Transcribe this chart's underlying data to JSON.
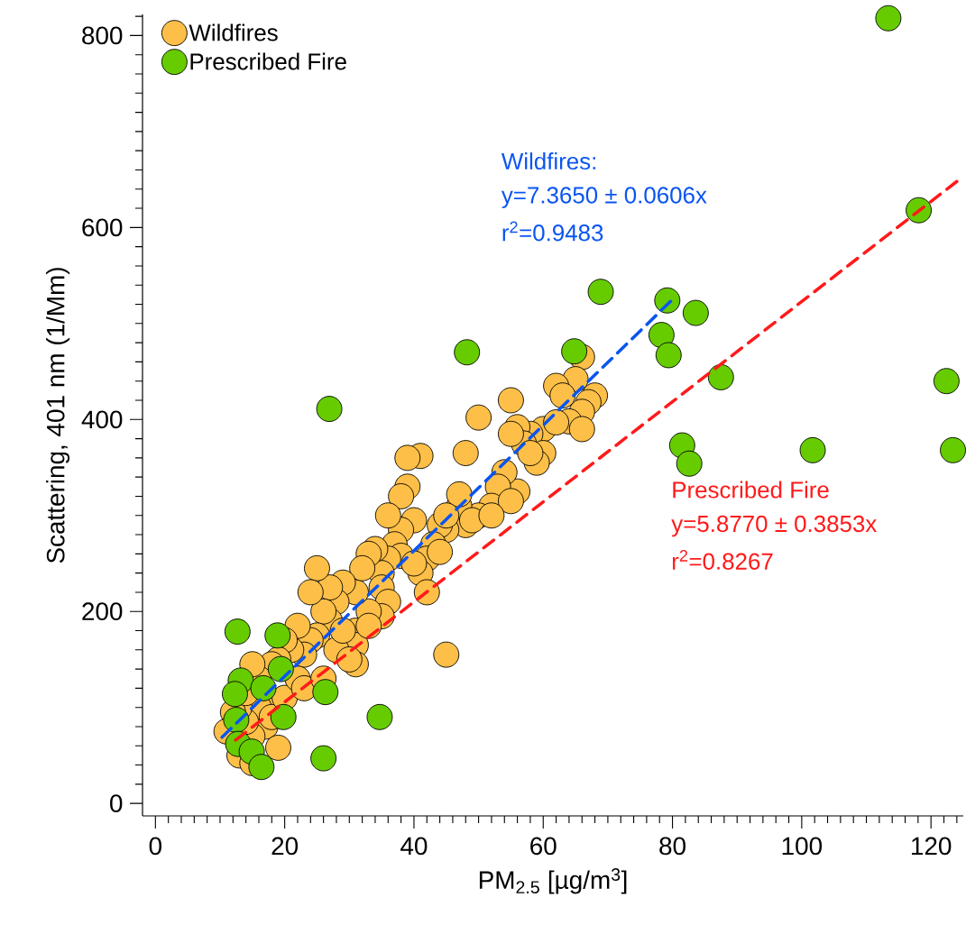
{
  "chart_data": {
    "type": "scatter",
    "xlabel": "PM$_{2.5}$ [µg/m$^{3}$]",
    "ylabel": "Scattering, 401 nm (1/Mm)",
    "xlim": [
      -2,
      125
    ],
    "ylim": [
      -13,
      822
    ],
    "xticks": [
      0,
      {
        "value": 2,
        "label": null
      },
      {
        "value": 4,
        "label": null
      },
      {
        "value": 6,
        "label": null
      },
      {
        "value": 8,
        "label": null
      },
      {
        "value": 10,
        "label": null
      },
      {
        "value": 12,
        "label": null
      },
      {
        "value": 14,
        "label": null
      },
      {
        "value": 16,
        "label": null
      },
      {
        "value": 18,
        "label": null
      },
      20,
      {
        "value": 22,
        "label": null
      },
      {
        "value": 24,
        "label": null
      },
      {
        "value": 26,
        "label": null
      },
      {
        "value": 28,
        "label": null
      },
      {
        "value": 30,
        "label": null
      },
      {
        "value": 32,
        "label": null
      },
      {
        "value": 34,
        "label": null
      },
      {
        "value": 36,
        "label": null
      },
      {
        "value": 38,
        "label": null
      },
      40,
      {
        "value": 42,
        "label": null
      },
      {
        "value": 44,
        "label": null
      },
      {
        "value": 46,
        "label": null
      },
      {
        "value": 48,
        "label": null
      },
      {
        "value": 50,
        "label": null
      },
      {
        "value": 52,
        "label": null
      },
      {
        "value": 54,
        "label": null
      },
      {
        "value": 56,
        "label": null
      },
      {
        "value": 58,
        "label": null
      },
      60,
      {
        "value": 62,
        "label": null
      },
      {
        "value": 64,
        "label": null
      },
      {
        "value": 66,
        "label": null
      },
      {
        "value": 68,
        "label": null
      },
      {
        "value": 70,
        "label": null
      },
      {
        "value": 72,
        "label": null
      },
      {
        "value": 74,
        "label": null
      },
      {
        "value": 76,
        "label": null
      },
      {
        "value": 78,
        "label": null
      },
      80,
      {
        "value": 82,
        "label": null
      },
      {
        "value": 84,
        "label": null
      },
      {
        "value": 86,
        "label": null
      },
      {
        "value": 88,
        "label": null
      },
      {
        "value": 90,
        "label": null
      },
      {
        "value": 92,
        "label": null
      },
      {
        "value": 94,
        "label": null
      },
      {
        "value": 96,
        "label": null
      },
      {
        "value": 98,
        "label": null
      },
      100,
      {
        "value": 102,
        "label": null
      },
      {
        "value": 104,
        "label": null
      },
      {
        "value": 106,
        "label": null
      },
      {
        "value": 108,
        "label": null
      },
      {
        "value": 110,
        "label": null
      },
      {
        "value": 112,
        "label": null
      },
      {
        "value": 114,
        "label": null
      },
      {
        "value": 116,
        "label": null
      },
      {
        "value": 118,
        "label": null
      },
      120,
      {
        "value": 122,
        "label": null
      },
      {
        "value": 124,
        "label": null
      }
    ],
    "yticks": [
      0,
      {
        "value": 20,
        "label": null
      },
      {
        "value": 40,
        "label": null
      },
      {
        "value": 60,
        "label": null
      },
      {
        "value": 80,
        "label": null
      },
      {
        "value": 100,
        "label": null
      },
      {
        "value": 120,
        "label": null
      },
      {
        "value": 140,
        "label": null
      },
      {
        "value": 160,
        "label": null
      },
      {
        "value": 180,
        "label": null
      },
      200,
      {
        "value": 220,
        "label": null
      },
      {
        "value": 240,
        "label": null
      },
      {
        "value": 260,
        "label": null
      },
      {
        "value": 280,
        "label": null
      },
      {
        "value": 300,
        "label": null
      },
      {
        "value": 320,
        "label": null
      },
      {
        "value": 340,
        "label": null
      },
      {
        "value": 360,
        "label": null
      },
      {
        "value": 380,
        "label": null
      },
      400,
      {
        "value": 420,
        "label": null
      },
      {
        "value": 440,
        "label": null
      },
      {
        "value": 460,
        "label": null
      },
      {
        "value": 480,
        "label": null
      },
      {
        "value": 500,
        "label": null
      },
      {
        "value": 520,
        "label": null
      },
      {
        "value": 540,
        "label": null
      },
      {
        "value": 560,
        "label": null
      },
      {
        "value": 580,
        "label": null
      },
      600,
      {
        "value": 620,
        "label": null
      },
      {
        "value": 640,
        "label": null
      },
      {
        "value": 660,
        "label": null
      },
      {
        "value": 680,
        "label": null
      },
      {
        "value": 700,
        "label": null
      },
      {
        "value": 720,
        "label": null
      },
      {
        "value": 740,
        "label": null
      },
      {
        "value": 760,
        "label": null
      },
      {
        "value": 780,
        "label": null
      },
      800,
      {
        "value": 820,
        "label": null
      }
    ],
    "legend": "top left",
    "series": [
      {
        "name": "Wildfires",
        "color": "#fdbf47",
        "marker": "circle",
        "x": [
          66,
          65,
          62,
          63,
          68,
          67,
          66,
          64,
          66,
          60,
          58,
          56,
          55,
          57,
          55,
          60,
          59,
          56,
          54,
          53,
          50,
          52,
          55,
          50,
          48,
          47,
          47,
          48,
          45,
          44,
          43,
          42,
          41,
          42,
          44,
          45,
          41,
          39,
          39,
          38,
          40,
          38,
          36,
          37,
          38,
          40,
          36,
          35,
          34,
          33,
          35,
          36,
          35,
          33,
          31,
          32,
          31,
          31,
          31,
          29,
          28,
          27,
          27,
          25,
          26,
          25,
          24,
          24,
          23,
          22,
          21,
          20,
          19,
          18,
          17,
          17,
          16,
          16,
          15,
          15,
          14,
          13,
          13,
          12,
          11,
          14,
          15,
          18,
          19,
          20,
          22,
          23,
          26,
          28,
          29,
          30,
          33,
          45,
          49,
          52,
          58,
          62
        ],
        "values": [
          465,
          442,
          435,
          425,
          425,
          418,
          408,
          398,
          390,
          390,
          385,
          392,
          420,
          375,
          385,
          365,
          355,
          325,
          345,
          330,
          402,
          310,
          315,
          300,
          290,
          310,
          322,
          365,
          285,
          290,
          270,
          255,
          240,
          220,
          262,
          300,
          362,
          360,
          330,
          320,
          295,
          285,
          300,
          270,
          258,
          250,
          255,
          240,
          265,
          260,
          225,
          210,
          195,
          200,
          220,
          245,
          180,
          165,
          145,
          230,
          210,
          225,
          190,
          245,
          200,
          175,
          220,
          170,
          155,
          185,
          160,
          170,
          150,
          145,
          100,
          80,
          130,
          100,
          145,
          70,
          85,
          100,
          50,
          95,
          75,
          115,
          42,
          90,
          58,
          110,
          130,
          120,
          130,
          160,
          180,
          150,
          185,
          155,
          295,
          300,
          365,
          397
        ]
      },
      {
        "name": "Prescribed Fire",
        "color": "#66cc00",
        "marker": "circle",
        "x": [
          113.4,
          118.1,
          68.9,
          79.2,
          83.6,
          78.3,
          79.4,
          64.8,
          48.2,
          87.5,
          122.4,
          123.4,
          101.7,
          81.5,
          82.6,
          26.9,
          12.7,
          18.9,
          19.4,
          13.2,
          12.3,
          16.7,
          26.3,
          19.8,
          12.5,
          12.8,
          14.9,
          16.4,
          26.0,
          34.7
        ],
        "values": [
          818,
          618,
          533,
          524,
          511,
          488,
          467,
          471,
          470,
          444,
          440,
          368,
          368,
          373,
          354,
          411,
          179,
          175,
          140,
          128,
          114,
          120,
          116,
          90,
          87,
          62,
          54,
          38,
          47,
          90
        ]
      },
      {
        "type": "line",
        "color": "#0a55f0",
        "marker": "none",
        "line_style": "dashed",
        "x": [
          10.3,
          79.7
        ],
        "values": [
          69,
          523
        ]
      },
      {
        "type": "line",
        "color": "#ff1a1a",
        "marker": "none",
        "line_style": "dashed",
        "x": [
          12.4,
          124
        ],
        "values": [
          66,
          648
        ]
      }
    ],
    "annotations": [
      "Wildfires:",
      "y=7.3650 ± 0.0606x",
      "r$^{2}$=0.9483",
      "Prescribed Fire",
      "y=5.8770 ± 0.3853x",
      "r$^{2}$=0.8267"
    ]
  }
}
